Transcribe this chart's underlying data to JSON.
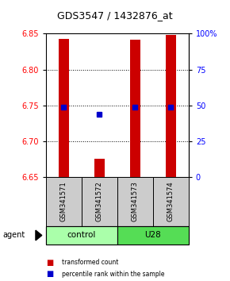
{
  "title": "GDS3547 / 1432876_at",
  "samples": [
    "GSM341571",
    "GSM341572",
    "GSM341573",
    "GSM341574"
  ],
  "bar_values": [
    6.843,
    6.675,
    6.842,
    6.848
  ],
  "bar_bottom": 6.65,
  "blue_values": [
    6.748,
    6.738,
    6.748,
    6.748
  ],
  "ylim": [
    6.65,
    6.85
  ],
  "yticks_left": [
    6.65,
    6.7,
    6.75,
    6.8,
    6.85
  ],
  "yticks_right_labels": [
    "0",
    "25",
    "50",
    "75",
    "100%"
  ],
  "yticks_right_vals": [
    6.65,
    6.7,
    6.75,
    6.8,
    6.85
  ],
  "groups": [
    {
      "label": "control",
      "indices": [
        0,
        1
      ],
      "color": "#aaffaa"
    },
    {
      "label": "U28",
      "indices": [
        2,
        3
      ],
      "color": "#55dd55"
    }
  ],
  "group_label": "agent",
  "bar_color": "#cc0000",
  "blue_color": "#0000cc",
  "bar_width": 0.3,
  "sample_box_color": "#cccccc",
  "legend_items": [
    {
      "color": "#cc0000",
      "label": "transformed count"
    },
    {
      "color": "#0000cc",
      "label": "percentile rank within the sample"
    }
  ]
}
